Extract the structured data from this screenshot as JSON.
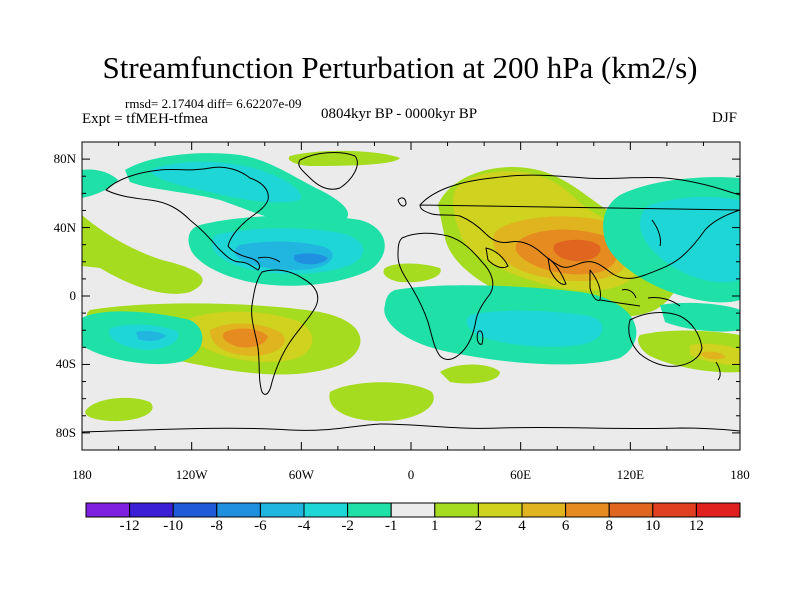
{
  "title": "Streamfunction Perturbation at 200 hPa (km2/s)",
  "stats": "rmsd= 2.17404 diff= 6.62207e-09",
  "expt": "Expt = tfMEH-tfmea",
  "period": "0804kyr BP - 0000kyr BP",
  "season": "DJF",
  "lat_ticks": [
    "80N",
    "40N",
    "0",
    "40S",
    "80S"
  ],
  "lon_ticks": [
    "180",
    "120W",
    "60W",
    "0",
    "60E",
    "120E",
    "180"
  ],
  "colorbar": {
    "labels": [
      "-12",
      "-10",
      "-8",
      "-6",
      "-4",
      "-2",
      "-1",
      "1",
      "2",
      "4",
      "6",
      "8",
      "10",
      "12"
    ],
    "colors": [
      "#7f1fe0",
      "#3a1fd6",
      "#1e5bd8",
      "#1f8fe0",
      "#21b6e0",
      "#1fd6d6",
      "#1fe0a6",
      "#ebebeb",
      "#a6dc1f",
      "#cfd21f",
      "#e0b41f",
      "#e68b1f",
      "#e0661f",
      "#e0401f",
      "#e0201f"
    ]
  },
  "legend_colors": {
    "neutral": "#ebebeb",
    "cyan": "#1fd6d6",
    "seagreen": "#1fe0a6",
    "lightblue": "#21b6e0",
    "blue": "#1f8fe0",
    "lime": "#a6dc1f",
    "yellow": "#cfd21f",
    "orange": "#e0b41f",
    "darkorange": "#e68b1f",
    "red": "#e0661f"
  }
}
